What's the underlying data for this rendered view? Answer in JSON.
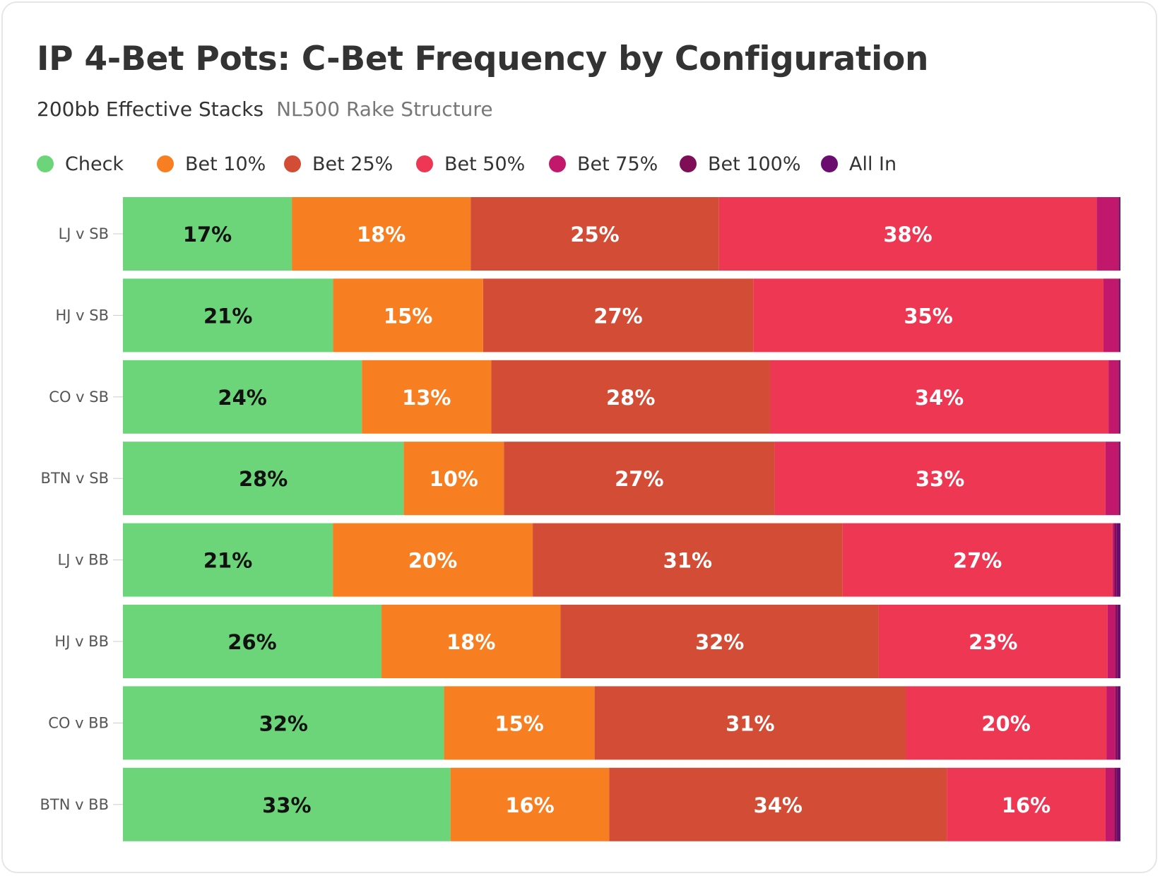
{
  "header": {
    "title": "IP 4-Bet Pots: C-Bet Frequency by Configuration",
    "subtitle": "200bb Effective Stacks",
    "subtitle_note": "NL500 Rake Structure"
  },
  "legend": [
    {
      "label": "Check",
      "color": "#6cd57a"
    },
    {
      "label": "Bet 10%",
      "color": "#f77f22"
    },
    {
      "label": "Bet 25%",
      "color": "#d34c35"
    },
    {
      "label": "Bet 50%",
      "color": "#ee3753"
    },
    {
      "label": "Bet 75%",
      "color": "#c2186b"
    },
    {
      "label": "Bet 100%",
      "color": "#7e0f56"
    },
    {
      "label": "All In",
      "color": "#6a0d6f"
    }
  ],
  "chart_data": {
    "type": "bar",
    "orientation": "horizontal",
    "stacked": true,
    "categories": [
      "LJ v SB",
      "HJ v SB",
      "CO v SB",
      "BTN v SB",
      "LJ v BB",
      "HJ v BB",
      "CO v BB",
      "BTN v BB"
    ],
    "series": [
      {
        "name": "Check",
        "values": [
          17,
          21,
          24,
          28,
          21,
          26,
          32,
          33
        ]
      },
      {
        "name": "Bet 10%",
        "values": [
          18,
          15,
          13,
          10,
          20,
          18,
          15,
          16
        ]
      },
      {
        "name": "Bet 25%",
        "values": [
          25,
          27,
          28,
          27,
          31,
          32,
          31,
          34
        ]
      },
      {
        "name": "Bet 50%",
        "values": [
          38,
          35,
          34,
          33,
          27,
          23,
          20,
          16
        ]
      },
      {
        "name": "Bet 75%",
        "values": [
          2.2,
          1.5,
          1.0,
          1.3,
          0.2,
          0.8,
          0.9,
          0.9
        ]
      },
      {
        "name": "Bet 100%",
        "values": [
          0.1,
          0.1,
          0.1,
          0.1,
          0.2,
          0.2,
          0.2,
          0.2
        ]
      },
      {
        "name": "All In",
        "values": [
          0.1,
          0.1,
          0.1,
          0.1,
          0.4,
          0.3,
          0.3,
          0.4
        ]
      }
    ],
    "data_labels": [
      [
        "17%",
        "18%",
        "25%",
        "38%"
      ],
      [
        "21%",
        "15%",
        "27%",
        "35%"
      ],
      [
        "24%",
        "13%",
        "28%",
        "34%"
      ],
      [
        "28%",
        "10%",
        "27%",
        "33%"
      ],
      [
        "21%",
        "20%",
        "31%",
        "27%"
      ],
      [
        "26%",
        "18%",
        "32%",
        "23%"
      ],
      [
        "32%",
        "15%",
        "31%",
        "20%"
      ],
      [
        "33%",
        "16%",
        "34%",
        "16%"
      ]
    ],
    "xlim": [
      0,
      100
    ],
    "legend_position": "top-left",
    "grid": false
  }
}
